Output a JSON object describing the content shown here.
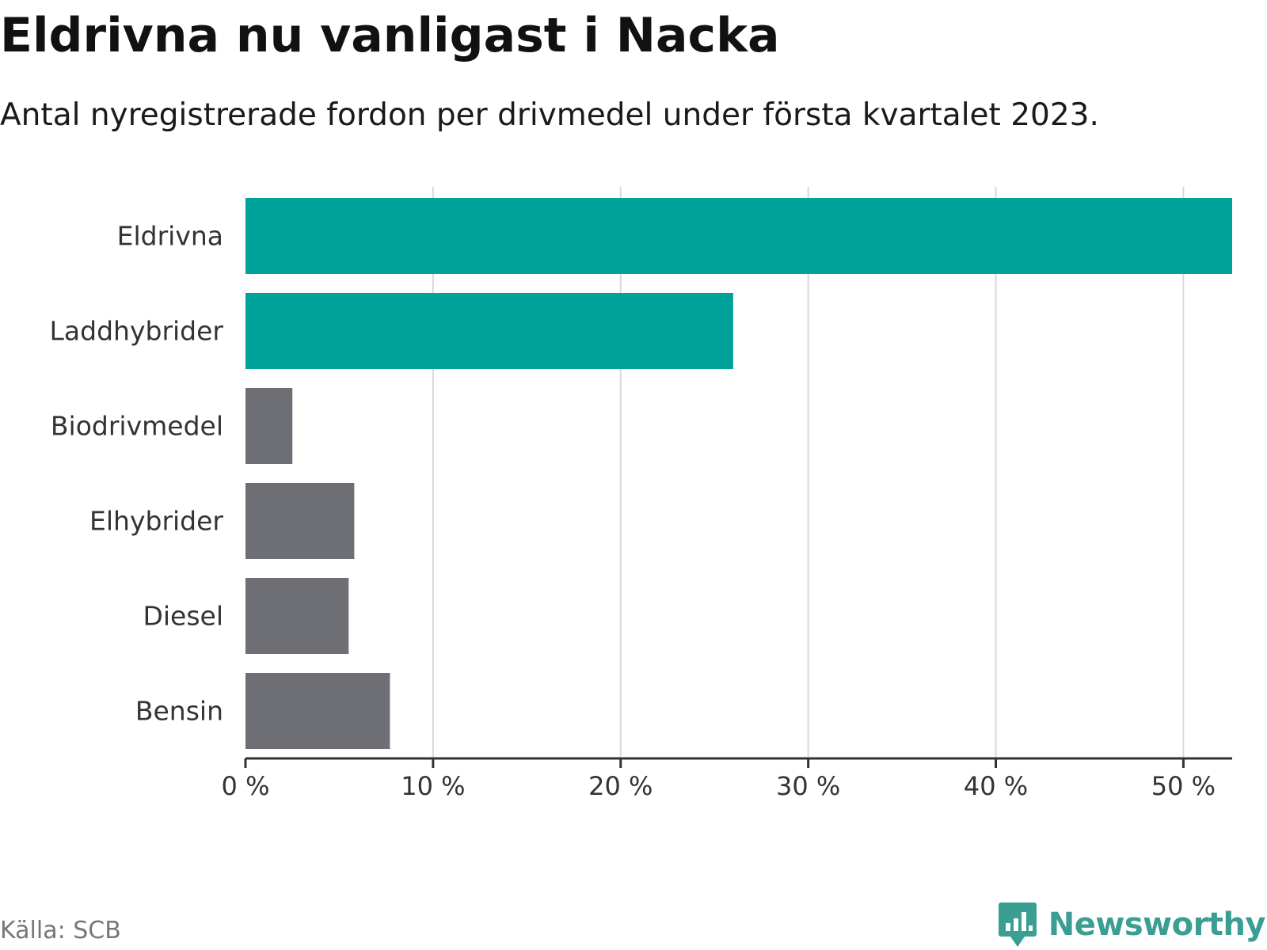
{
  "title": "Eldrivna nu vanligast i Nacka",
  "subtitle": "Antal nyregistrerade fordon per drivmedel under första kvartalet 2023.",
  "source": "Källa: SCB",
  "logo": {
    "name": "Newsworthy",
    "icon": "newsworthy-chart-bubble-icon"
  },
  "colors": {
    "highlight": "#00a39a",
    "default": "#6e6e75",
    "grid": "#d9d9d9",
    "axis": "#333333",
    "logo": "#3a9e93"
  },
  "chart_data": {
    "type": "bar",
    "orientation": "horizontal",
    "title": "Eldrivna nu vanligast i Nacka",
    "subtitle": "Antal nyregistrerade fordon per drivmedel under första kvartalet 2023.",
    "xlabel": "",
    "ylabel": "",
    "unit": "%",
    "categories": [
      "Eldrivna",
      "Laddhybrider",
      "Biodrivmedel",
      "Elhybrider",
      "Diesel",
      "Bensin"
    ],
    "values": [
      52.6,
      26.0,
      2.5,
      5.8,
      5.5,
      7.7
    ],
    "highlighted": [
      true,
      true,
      false,
      false,
      false,
      false
    ],
    "xlim": [
      0,
      52.6
    ],
    "xticks": [
      0,
      10,
      20,
      30,
      40,
      50
    ],
    "xtick_labels": [
      "0 %",
      "10 %",
      "20 %",
      "30 %",
      "40 %",
      "50 %"
    ],
    "grid": true,
    "legend": "none"
  }
}
